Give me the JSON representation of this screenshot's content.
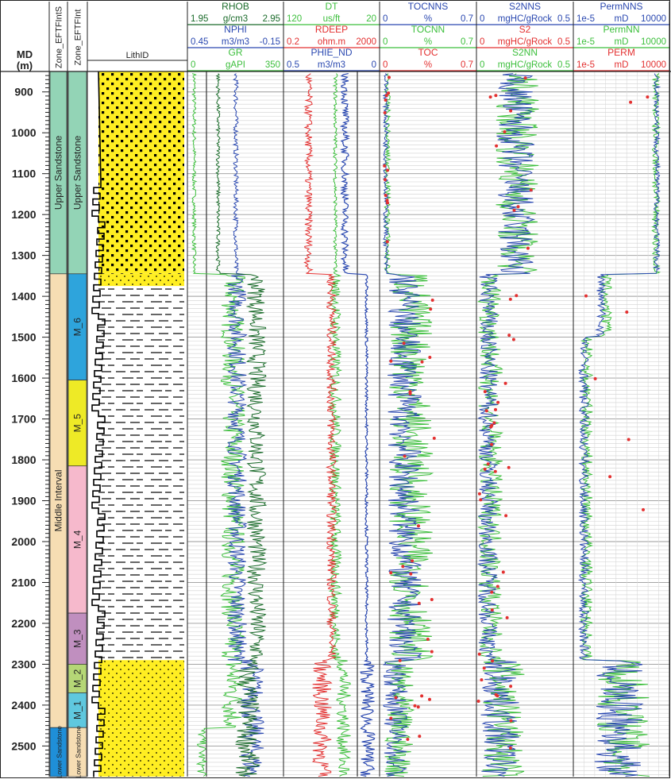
{
  "chart_data": {
    "type": "well-log",
    "depth": {
      "title": "MD",
      "unit": "(m)",
      "range": [
        850,
        2575
      ],
      "ticks": [
        "900",
        "1000",
        "1100",
        "1200",
        "1300",
        "1400",
        "1500",
        "1600",
        "1700",
        "1800",
        "1900",
        "2000",
        "2100",
        "2200",
        "2300",
        "2400",
        "2500"
      ]
    },
    "zone_tracks": [
      {
        "header": "Zone_EFTFIntS",
        "zones": [
          {
            "name": "Upper Sandstone",
            "top": 850,
            "base": 1345,
            "color": "#93d4b6"
          },
          {
            "name": "Middle Interval",
            "top": 1345,
            "base": 2455,
            "color": "#f6ddb3"
          },
          {
            "name": "Lower Sandstone",
            "top": 2455,
            "base": 2575,
            "color": "#1f8fd8"
          }
        ]
      },
      {
        "header": "Zone_EFTFInt",
        "zones": [
          {
            "name": "Upper Sandstone",
            "top": 850,
            "base": 1345,
            "color": "#93d4b6"
          },
          {
            "name": "M_6",
            "top": 1345,
            "base": 1605,
            "color": "#2ea4dc"
          },
          {
            "name": "M_5",
            "top": 1605,
            "base": 1815,
            "color": "#eeea26"
          },
          {
            "name": "M_4",
            "top": 1815,
            "base": 2175,
            "color": "#f6b9cc"
          },
          {
            "name": "M_3",
            "top": 2175,
            "base": 2300,
            "color": "#c08fbf"
          },
          {
            "name": "M_2",
            "top": 2300,
            "base": 2370,
            "color": "#b5d776"
          },
          {
            "name": "M_1",
            "top": 2370,
            "base": 2455,
            "color": "#5fc8df"
          },
          {
            "name": "Lower Sandstone",
            "top": 2455,
            "base": 2575,
            "color": "#f6ddb3"
          }
        ]
      }
    ],
    "lith_track": {
      "header": "LithID",
      "intervals": [
        {
          "top": 850,
          "base": 1345,
          "lith": "sandstone"
        },
        {
          "top": 1345,
          "base": 1375,
          "lith": "sandstone"
        },
        {
          "top": 1375,
          "base": 2290,
          "lith": "shaly"
        },
        {
          "top": 2290,
          "base": 2455,
          "lith": "sandstone"
        },
        {
          "top": 2455,
          "base": 2575,
          "lith": "sandstone"
        }
      ]
    },
    "log_tracks": [
      {
        "curves": [
          {
            "name": "RHOB",
            "min": "1.95",
            "unit": "g/cm3",
            "max": "2.95",
            "color": "#1a6b2a"
          },
          {
            "name": "NPHI",
            "min": "0.45",
            "unit": "m3/m3",
            "max": "-0.15",
            "color": "#2a48b0"
          },
          {
            "name": "GR",
            "min": "0",
            "unit": "gAPI",
            "max": "350",
            "color": "#3cbf3c"
          }
        ]
      },
      {
        "curves": [
          {
            "name": "DT",
            "min": "120",
            "unit": "us/ft",
            "max": "20",
            "color": "#3cbf3c"
          },
          {
            "name": "RDEEP",
            "min": "0.2",
            "unit": "ohm.m",
            "max": "2000",
            "color": "#e33030"
          },
          {
            "name": "PHIE_ND",
            "min": "0.5",
            "unit": "m3/m3",
            "max": "0",
            "color": "#2a48b0"
          }
        ]
      },
      {
        "curves": [
          {
            "name": "TOCNNS",
            "min": "0",
            "unit": "%",
            "max": "0.7",
            "color": "#2a48b0"
          },
          {
            "name": "TOCNN",
            "min": "0",
            "unit": "%",
            "max": "0.7",
            "color": "#3cbf3c"
          },
          {
            "name": "TOC",
            "min": "0",
            "unit": "%",
            "max": "0.7",
            "color": "#e33030"
          }
        ]
      },
      {
        "curves": [
          {
            "name": "S2NNS",
            "min": "0",
            "unit": "mgHC/gRock",
            "max": "0.5",
            "color": "#2a48b0"
          },
          {
            "name": "S2",
            "min": "0",
            "unit": "mgHC/gRock",
            "max": "0.5",
            "color": "#e33030"
          },
          {
            "name": "S2NN",
            "min": "0",
            "unit": "mgHC/gRock",
            "max": "0.5",
            "color": "#3cbf3c"
          }
        ]
      },
      {
        "curves": [
          {
            "name": "PermNNS",
            "min": "1e-5",
            "unit": "mD",
            "max": "10000",
            "color": "#2a48b0"
          },
          {
            "name": "PermNN",
            "min": "1e-5",
            "unit": "mD",
            "max": "10000",
            "color": "#3cbf3c"
          },
          {
            "name": "PERM",
            "min": "1e-5",
            "unit": "mD",
            "max": "10000",
            "color": "#e33030"
          }
        ]
      }
    ]
  }
}
